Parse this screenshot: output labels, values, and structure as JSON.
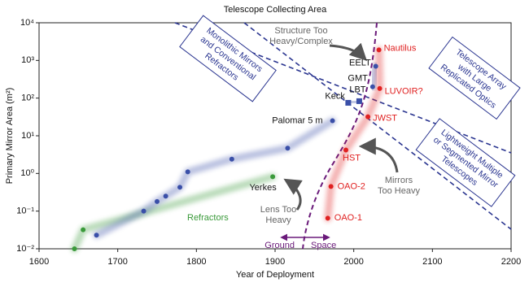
{
  "chart_data": {
    "type": "scatter",
    "title": "Telescope Collecting Area",
    "xlabel": "Year of Deployment",
    "ylabel": "Primary Mirror Area (m²)",
    "xlim": [
      1600,
      2200
    ],
    "xticks": [
      1600,
      1700,
      1800,
      1900,
      2000,
      2100,
      2200
    ],
    "ylim": [
      0.01,
      10000
    ],
    "log_y": true,
    "yticks": [
      {
        "value": 0.01,
        "label": "10⁻²"
      },
      {
        "value": 0.1,
        "label": "10⁻¹"
      },
      {
        "value": 1,
        "label": "10⁰"
      },
      {
        "value": 10,
        "label": "10¹"
      },
      {
        "value": 100,
        "label": "10²"
      },
      {
        "value": 1000,
        "label": "10³"
      },
      {
        "value": 10000,
        "label": "10⁴"
      }
    ],
    "series": [
      {
        "name": "Refractors",
        "color": "#3a9a3a",
        "marker": "circle",
        "x": [
          1645,
          1656,
          1897
        ],
        "values": [
          0.01,
          0.032,
          0.82
        ],
        "labels": [
          null,
          null,
          "Yerkes"
        ]
      },
      {
        "color": "#3a4fa8",
        "marker": "circle",
        "x": [
          1673,
          1733,
          1750,
          1761,
          1779,
          1789,
          1845,
          1916,
          1973
        ],
        "values": [
          0.023,
          0.1,
          0.18,
          0.25,
          0.43,
          1.1,
          2.4,
          4.7,
          25
        ],
        "labels": [
          null,
          null,
          null,
          null,
          null,
          null,
          null,
          null,
          "Palomar 5 m"
        ]
      },
      {
        "color": "#3a4fa8",
        "marker": "square",
        "x": [
          1993,
          2007
        ],
        "values": [
          75,
          83
        ],
        "labels": [
          "Keck",
          "LBT"
        ]
      },
      {
        "color": "#3a4fa8",
        "marker": "circle",
        "x": [
          2024,
          2028
        ],
        "values": [
          200,
          700
        ],
        "labels": [
          "GMT",
          "EELT"
        ]
      },
      {
        "color": "#e02020",
        "marker": "circle",
        "x": [
          1967,
          1971,
          1990,
          2018,
          2033,
          2032
        ],
        "values": [
          0.065,
          0.45,
          4.2,
          32,
          180,
          1900
        ],
        "labels": [
          "OAO-1",
          "OAO-2",
          "HST",
          "JWST",
          "LUVOIR?",
          "Nautilus"
        ]
      }
    ],
    "annotations": {
      "monolithic": [
        "Monolithic Mirrors",
        "and Conventional",
        "Refractors"
      ],
      "array": [
        "Telescope Array",
        "with Large",
        "Replicated Optics"
      ],
      "lightweight": [
        "Lightweight Multiple",
        "or Segmented Mirror",
        "Telescopes"
      ],
      "structure": [
        "Structure Too",
        "Heavy/Complex"
      ],
      "mirrors": [
        "Mirrors",
        "Too Heavy"
      ],
      "lens": [
        "Lens Too",
        "Heavy"
      ],
      "ground": "Ground",
      "space": "Space"
    }
  }
}
